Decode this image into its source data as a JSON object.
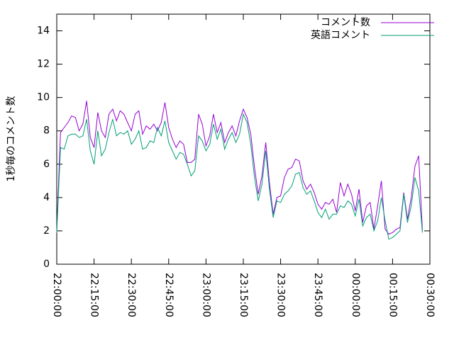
{
  "chart_data": {
    "type": "line",
    "ylabel": "1秒毎のコメント数",
    "x": [
      "22:00:00",
      "22:01:30",
      "22:03:00",
      "22:04:30",
      "22:06:00",
      "22:07:30",
      "22:09:00",
      "22:10:30",
      "22:12:00",
      "22:13:30",
      "22:15:00",
      "22:16:30",
      "22:18:00",
      "22:19:30",
      "22:21:00",
      "22:22:30",
      "22:24:00",
      "22:25:30",
      "22:27:00",
      "22:28:30",
      "22:30:00",
      "22:31:30",
      "22:33:00",
      "22:34:30",
      "22:36:00",
      "22:37:30",
      "22:39:00",
      "22:40:30",
      "22:42:00",
      "22:43:30",
      "22:45:00",
      "22:46:30",
      "22:48:00",
      "22:49:30",
      "22:51:00",
      "22:52:30",
      "22:54:00",
      "22:55:30",
      "22:57:00",
      "22:58:30",
      "23:00:00",
      "23:01:30",
      "23:03:00",
      "23:04:30",
      "23:06:00",
      "23:07:30",
      "23:09:00",
      "23:10:30",
      "23:12:00",
      "23:13:30",
      "23:15:00",
      "23:16:30",
      "23:18:00",
      "23:19:30",
      "23:21:00",
      "23:22:30",
      "23:24:00",
      "23:25:30",
      "23:27:00",
      "23:28:30",
      "23:30:00",
      "23:31:30",
      "23:33:00",
      "23:34:30",
      "23:36:00",
      "23:37:30",
      "23:39:00",
      "23:40:30",
      "23:42:00",
      "23:43:30",
      "23:45:00",
      "23:46:30",
      "23:48:00",
      "23:49:30",
      "23:51:00",
      "23:52:30",
      "23:54:00",
      "23:55:30",
      "23:57:00",
      "23:58:30",
      "00:00:00",
      "00:01:30",
      "00:03:00",
      "00:04:30",
      "00:06:00",
      "00:07:30",
      "00:09:00",
      "00:10:30",
      "00:12:00",
      "00:13:30",
      "00:15:00",
      "00:16:30",
      "00:18:00",
      "00:19:30",
      "00:21:00",
      "00:22:30",
      "00:24:00",
      "00:25:30",
      "00:27:00"
    ],
    "series": [
      {
        "name": "コメント数",
        "color": "#9400d3",
        "values": [
          2.0,
          7.9,
          8.2,
          8.5,
          8.9,
          8.8,
          8.0,
          8.4,
          9.8,
          7.6,
          7.0,
          9.1,
          8.0,
          7.6,
          9.0,
          9.3,
          8.6,
          9.2,
          9.0,
          8.5,
          8.0,
          9.0,
          9.2,
          7.8,
          8.3,
          8.1,
          8.4,
          8.0,
          8.5,
          9.7,
          8.2,
          7.5,
          7.0,
          7.4,
          7.2,
          6.1,
          6.1,
          6.3,
          9.0,
          8.4,
          7.1,
          7.7,
          9.0,
          7.9,
          8.5,
          7.3,
          7.9,
          8.3,
          7.7,
          8.6,
          9.3,
          8.8,
          7.8,
          5.8,
          4.2,
          5.3,
          7.3,
          4.9,
          3.0,
          4.0,
          4.1,
          5.2,
          5.7,
          5.8,
          6.3,
          6.2,
          5.0,
          4.5,
          4.8,
          4.3,
          3.6,
          3.3,
          3.7,
          3.6,
          3.9,
          3.1,
          4.9,
          4.1,
          4.8,
          4.2,
          3.2,
          4.5,
          2.5,
          3.5,
          3.7,
          2.1,
          3.5,
          5.0,
          2.1,
          1.8,
          1.9,
          2.1,
          2.2,
          4.3,
          2.7,
          4.0,
          5.9,
          6.5,
          2.0
        ]
      },
      {
        "name": "英語コメント",
        "color": "#009e73",
        "values": [
          1.9,
          7.0,
          6.9,
          7.7,
          7.8,
          7.8,
          7.6,
          7.7,
          8.7,
          6.8,
          6.0,
          8.0,
          6.5,
          6.9,
          7.9,
          8.7,
          7.7,
          7.9,
          7.8,
          8.0,
          7.2,
          7.5,
          8.0,
          6.9,
          7.0,
          7.4,
          7.3,
          8.2,
          7.7,
          8.6,
          7.3,
          6.8,
          6.3,
          6.7,
          6.6,
          6.0,
          5.3,
          5.6,
          7.7,
          7.4,
          6.8,
          7.2,
          8.4,
          7.5,
          8.1,
          6.9,
          7.5,
          7.9,
          7.3,
          7.8,
          9.0,
          8.5,
          7.2,
          5.2,
          3.8,
          4.8,
          6.8,
          4.5,
          2.8,
          3.8,
          3.7,
          4.2,
          4.4,
          4.7,
          5.4,
          5.5,
          4.6,
          4.2,
          4.4,
          3.8,
          3.1,
          2.8,
          3.3,
          2.7,
          3.0,
          3.0,
          3.5,
          3.4,
          3.8,
          3.6,
          2.9,
          3.9,
          2.3,
          2.8,
          3.0,
          2.0,
          2.6,
          4.0,
          2.6,
          1.5,
          1.6,
          1.8,
          2.0,
          4.2,
          2.5,
          3.5,
          5.2,
          4.4,
          1.9
        ]
      }
    ],
    "xlim": [
      "22:00:00",
      "00:30:00"
    ],
    "xticks": [
      "22:00:00",
      "22:15:00",
      "22:30:00",
      "22:45:00",
      "23:00:00",
      "23:15:00",
      "23:30:00",
      "23:45:00",
      "00:00:00",
      "00:15:00",
      "00:30:00"
    ],
    "ylim": [
      0,
      15
    ],
    "yticks": [
      0,
      2,
      4,
      6,
      8,
      10,
      12,
      14
    ],
    "legend": "top-right"
  }
}
